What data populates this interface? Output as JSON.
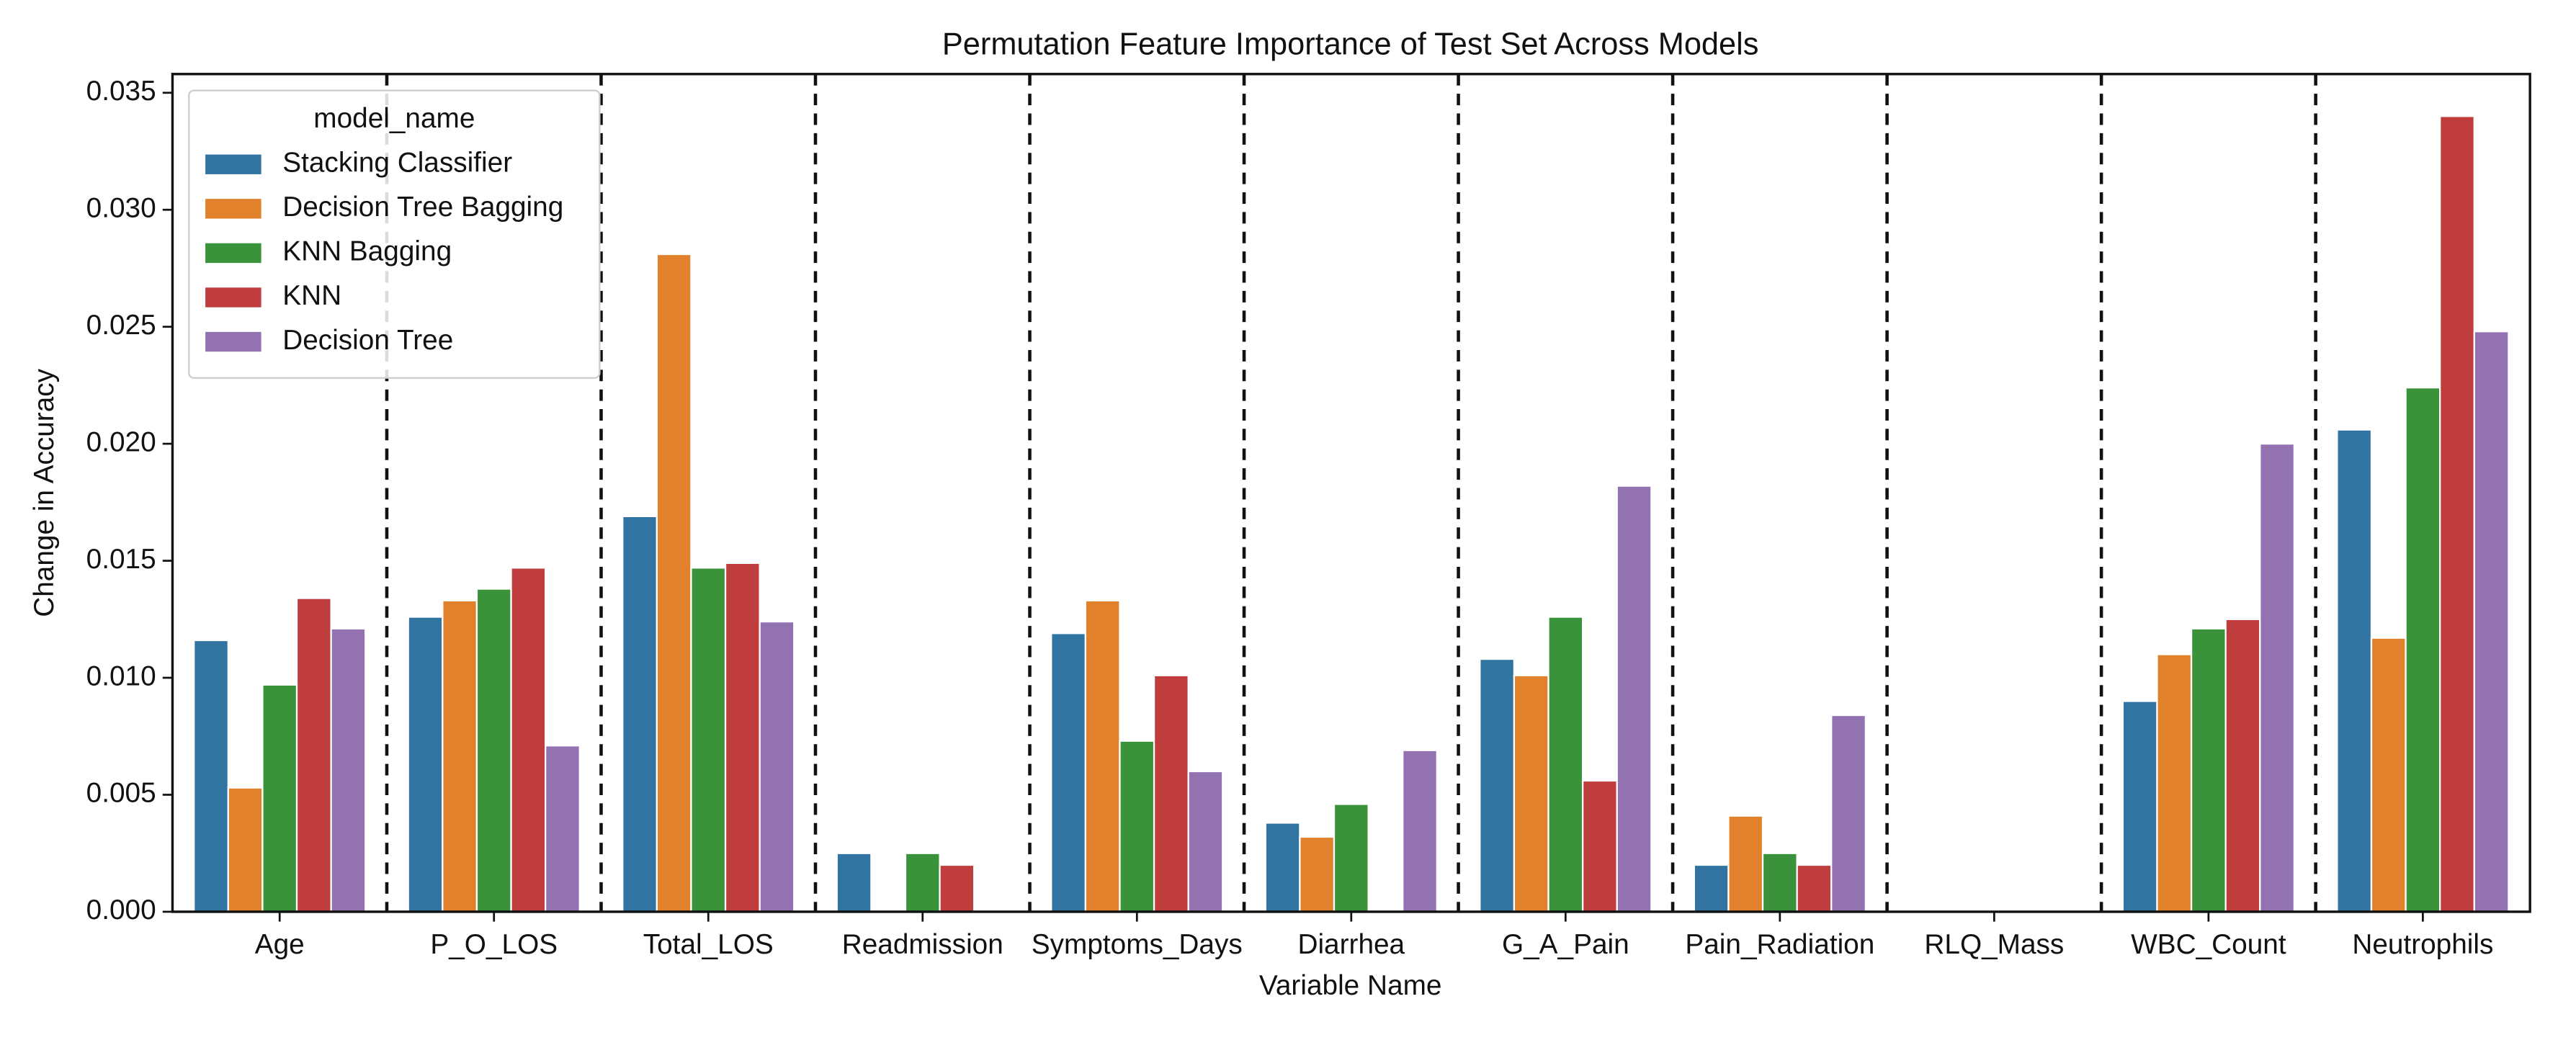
{
  "chart_data": {
    "type": "bar",
    "title": "Permutation Feature Importance of Test Set Across Models",
    "x_label": "Variable Name",
    "y_label": "Change in Accuracy",
    "legend_title": "model_name",
    "legend_position": "upper left",
    "categories": [
      "Age",
      "P_O_LOS",
      "Total_LOS",
      "Readmission",
      "Symptoms_Days",
      "Diarrhea",
      "G_A_Pain",
      "Pain_Radiation",
      "RLQ_Mass",
      "WBC_Count",
      "Neutrophils"
    ],
    "series": [
      {
        "name": "Stacking Classifier",
        "color": "#3274a1",
        "values": [
          0.0116,
          0.0126,
          0.0169,
          0.0025,
          0.0119,
          0.0038,
          0.0108,
          0.002,
          0,
          0.009,
          0.0206
        ]
      },
      {
        "name": "Decision Tree Bagging",
        "color": "#e1812c",
        "values": [
          0.0053,
          0.0133,
          0.0281,
          0,
          0.0133,
          0.0032,
          0.0101,
          0.0041,
          0,
          0.011,
          0.0117
        ]
      },
      {
        "name": "KNN Bagging",
        "color": "#3a923a",
        "values": [
          0.0097,
          0.0138,
          0.0147,
          0.0025,
          0.0073,
          0.0046,
          0.0126,
          0.0025,
          0,
          0.0121,
          0.0224
        ]
      },
      {
        "name": "KNN",
        "color": "#c03d3e",
        "values": [
          0.0134,
          0.0147,
          0.0149,
          0.002,
          0.0101,
          0,
          0.0056,
          0.002,
          0,
          0.0125,
          0.034
        ]
      },
      {
        "name": "Decision Tree",
        "color": "#9372b2",
        "values": [
          0.0121,
          0.0071,
          0.0124,
          0,
          0.006,
          0.0069,
          0.0182,
          0.0084,
          0,
          0.02,
          0.0248
        ]
      }
    ],
    "ylim": [
      0,
      0.0358
    ],
    "yticks": [
      {
        "value": 0,
        "label": "0.000"
      },
      {
        "value": 0.005,
        "label": "0.005"
      },
      {
        "value": 0.01,
        "label": "0.010"
      },
      {
        "value": 0.015,
        "label": "0.015"
      },
      {
        "value": 0.02,
        "label": "0.020"
      },
      {
        "value": 0.025,
        "label": "0.025"
      },
      {
        "value": 0.03,
        "label": "0.030"
      },
      {
        "value": 0.035,
        "label": "0.035"
      }
    ],
    "category_separators": true
  }
}
